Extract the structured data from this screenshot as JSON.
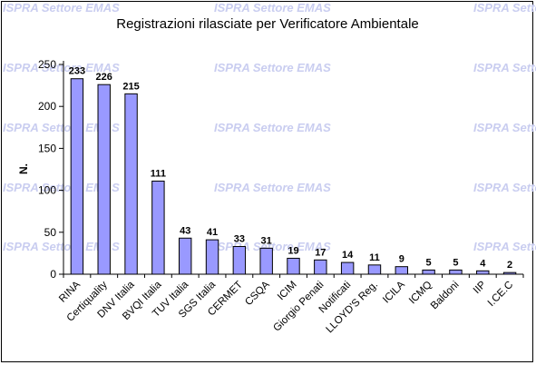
{
  "watermark": "ISPRA Settore EMAS",
  "chart_data": {
    "type": "bar",
    "title": "Registrazioni rilasciate per Verificatore Ambientale",
    "xlabel": "",
    "ylabel": "N.",
    "ylim": [
      0,
      250
    ],
    "yticks": [
      0,
      50,
      100,
      150,
      200,
      250
    ],
    "grid": false,
    "legend": "none",
    "bar_color": "#9999ff",
    "categories": [
      "RINA",
      "Certiquality",
      "DNV Italia",
      "BVQI Italia",
      "TUV Italia",
      "SGS Italia",
      "CERMET",
      "CSQA",
      "ICIM",
      "Giorgio Penati",
      "Notificati",
      "LLOYD'S Reg.",
      "ICILA",
      "ICMQ",
      "Baldoni",
      "IIP",
      "I.CE.C"
    ],
    "values": [
      233,
      226,
      215,
      111,
      43,
      41,
      33,
      31,
      19,
      17,
      14,
      11,
      9,
      5,
      5,
      4,
      2
    ]
  }
}
